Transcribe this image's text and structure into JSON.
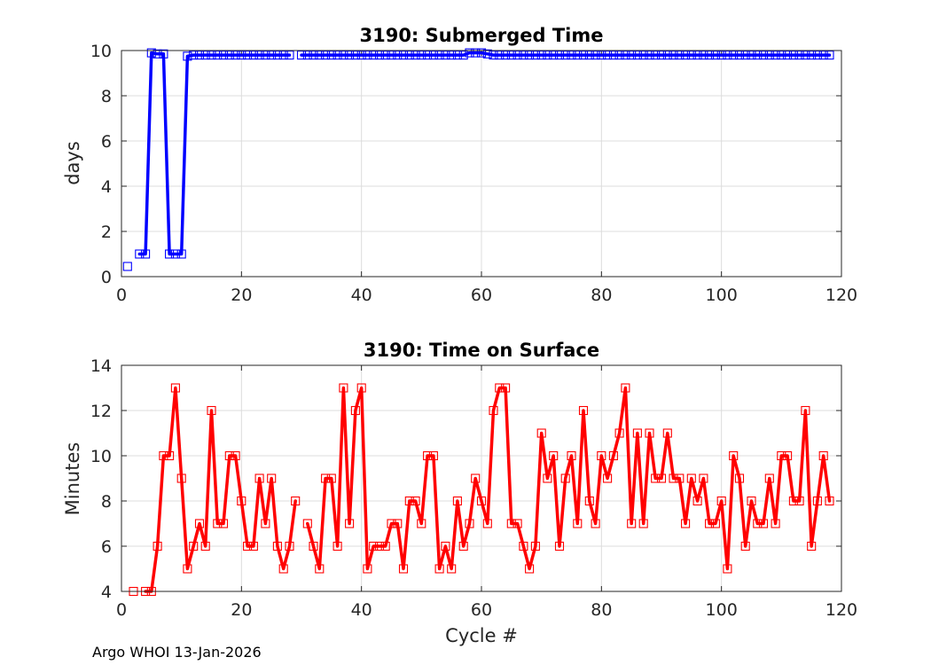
{
  "footer": "Argo WHOI 13-Jan-2026",
  "chart_data": [
    {
      "type": "line",
      "title": "3190: Submerged Time",
      "xlabel": "",
      "ylabel": "days",
      "xlim": [
        0,
        120
      ],
      "ylim": [
        0,
        10
      ],
      "xticks": [
        "0",
        "20",
        "40",
        "60",
        "80",
        "100",
        "120"
      ],
      "yticks": [
        "0",
        "2",
        "4",
        "6",
        "8",
        "10"
      ],
      "grid": true,
      "color": "#0000ff",
      "marker": "square",
      "segments": [
        {
          "x": [
            1
          ],
          "y": [
            0.45
          ]
        },
        {
          "x": [
            3,
            4,
            5,
            6,
            7,
            8,
            9,
            10,
            11,
            12,
            13,
            14,
            15,
            16,
            17,
            18,
            19,
            20,
            21,
            22,
            23,
            24,
            25,
            26,
            27,
            28
          ],
          "y": [
            1.0,
            1.0,
            9.9,
            9.85,
            9.85,
            1.0,
            1.0,
            1.0,
            9.75,
            9.8,
            9.8,
            9.8,
            9.8,
            9.8,
            9.8,
            9.8,
            9.8,
            9.8,
            9.8,
            9.8,
            9.8,
            9.8,
            9.8,
            9.8,
            9.8,
            9.8
          ]
        },
        {
          "x": [
            30,
            31,
            32,
            33,
            34,
            35,
            36,
            37,
            38,
            39,
            40,
            41,
            42,
            43,
            44,
            45,
            46,
            47,
            48,
            49,
            50,
            51,
            52,
            53,
            54,
            55,
            56,
            57,
            58,
            59,
            60,
            61,
            62,
            63,
            64,
            65,
            66,
            67,
            68,
            69,
            70,
            71,
            72,
            73,
            74,
            75,
            76,
            77,
            78,
            79,
            80,
            81,
            82,
            83,
            84,
            85,
            86,
            87,
            88,
            89,
            90,
            91,
            92,
            93,
            94,
            95,
            96,
            97,
            98,
            99,
            100,
            101,
            102,
            103,
            104,
            105,
            106,
            107,
            108,
            109,
            110,
            111,
            112,
            113,
            114,
            115,
            116,
            117,
            118
          ],
          "y": [
            9.8,
            9.8,
            9.8,
            9.8,
            9.8,
            9.8,
            9.8,
            9.8,
            9.8,
            9.8,
            9.8,
            9.8,
            9.8,
            9.8,
            9.8,
            9.8,
            9.8,
            9.8,
            9.8,
            9.8,
            9.8,
            9.8,
            9.8,
            9.8,
            9.8,
            9.8,
            9.8,
            9.8,
            9.9,
            9.9,
            9.9,
            9.85,
            9.8,
            9.8,
            9.8,
            9.8,
            9.8,
            9.8,
            9.8,
            9.8,
            9.8,
            9.8,
            9.8,
            9.8,
            9.8,
            9.8,
            9.8,
            9.8,
            9.8,
            9.8,
            9.8,
            9.8,
            9.8,
            9.8,
            9.8,
            9.8,
            9.8,
            9.8,
            9.8,
            9.8,
            9.8,
            9.8,
            9.8,
            9.8,
            9.8,
            9.8,
            9.8,
            9.8,
            9.8,
            9.8,
            9.8,
            9.8,
            9.8,
            9.8,
            9.8,
            9.8,
            9.8,
            9.8,
            9.8,
            9.8,
            9.8,
            9.8,
            9.8,
            9.8,
            9.8,
            9.8,
            9.8,
            9.8,
            9.8
          ]
        }
      ]
    },
    {
      "type": "line",
      "title": "3190: Time on Surface",
      "xlabel": "Cycle #",
      "ylabel": "Minutes",
      "xlim": [
        0,
        120
      ],
      "ylim": [
        4,
        14
      ],
      "xticks": [
        "0",
        "20",
        "40",
        "60",
        "80",
        "100",
        "120"
      ],
      "yticks": [
        "4",
        "6",
        "8",
        "10",
        "12",
        "14"
      ],
      "grid": true,
      "color": "#ff0000",
      "marker": "square",
      "segments": [
        {
          "x": [
            2
          ],
          "y": [
            4
          ]
        },
        {
          "x": [
            4,
            5,
            6,
            7,
            8,
            9,
            10,
            11,
            12,
            13,
            14,
            15,
            16,
            17,
            18,
            19,
            20,
            21,
            22,
            23,
            24,
            25,
            26,
            27,
            28,
            29
          ],
          "y": [
            4,
            4,
            6,
            10,
            10,
            13,
            9,
            5,
            6,
            7,
            6,
            12,
            7,
            7,
            10,
            10,
            8,
            6,
            6,
            9,
            7,
            9,
            6,
            5,
            6,
            8
          ]
        },
        {
          "x": [
            31,
            32,
            33,
            34,
            35,
            36,
            37,
            38,
            39,
            40,
            41,
            42,
            43,
            44,
            45,
            46,
            47,
            48,
            49,
            50,
            51,
            52,
            53,
            54,
            55,
            56,
            57,
            58,
            59,
            60,
            61,
            62,
            63,
            64,
            65,
            66,
            67,
            68,
            69,
            70,
            71,
            72,
            73,
            74,
            75,
            76,
            77,
            78,
            79,
            80,
            81,
            82,
            83,
            84,
            85,
            86,
            87,
            88,
            89,
            90,
            91,
            92,
            93,
            94,
            95,
            96,
            97,
            98,
            99,
            100,
            101,
            102,
            103,
            104,
            105,
            106,
            107,
            108,
            109,
            110,
            111,
            112,
            113,
            114,
            115,
            116,
            117,
            118
          ],
          "y": [
            7,
            6,
            5,
            9,
            9,
            6,
            13,
            7,
            12,
            13,
            5,
            6,
            6,
            6,
            7,
            7,
            5,
            8,
            8,
            7,
            10,
            10,
            5,
            6,
            5,
            8,
            6,
            7,
            9,
            8,
            7,
            12,
            13,
            13,
            7,
            7,
            6,
            5,
            6,
            11,
            9,
            10,
            6,
            9,
            10,
            7,
            12,
            8,
            7,
            10,
            9,
            10,
            11,
            13,
            7,
            11,
            7,
            11,
            9,
            9,
            11,
            9,
            9,
            7,
            9,
            8,
            9,
            7,
            7,
            8,
            5,
            10,
            9,
            6,
            8,
            7,
            7,
            9,
            7,
            10,
            10,
            8,
            8,
            12,
            6,
            8,
            10,
            8
          ]
        }
      ]
    }
  ]
}
